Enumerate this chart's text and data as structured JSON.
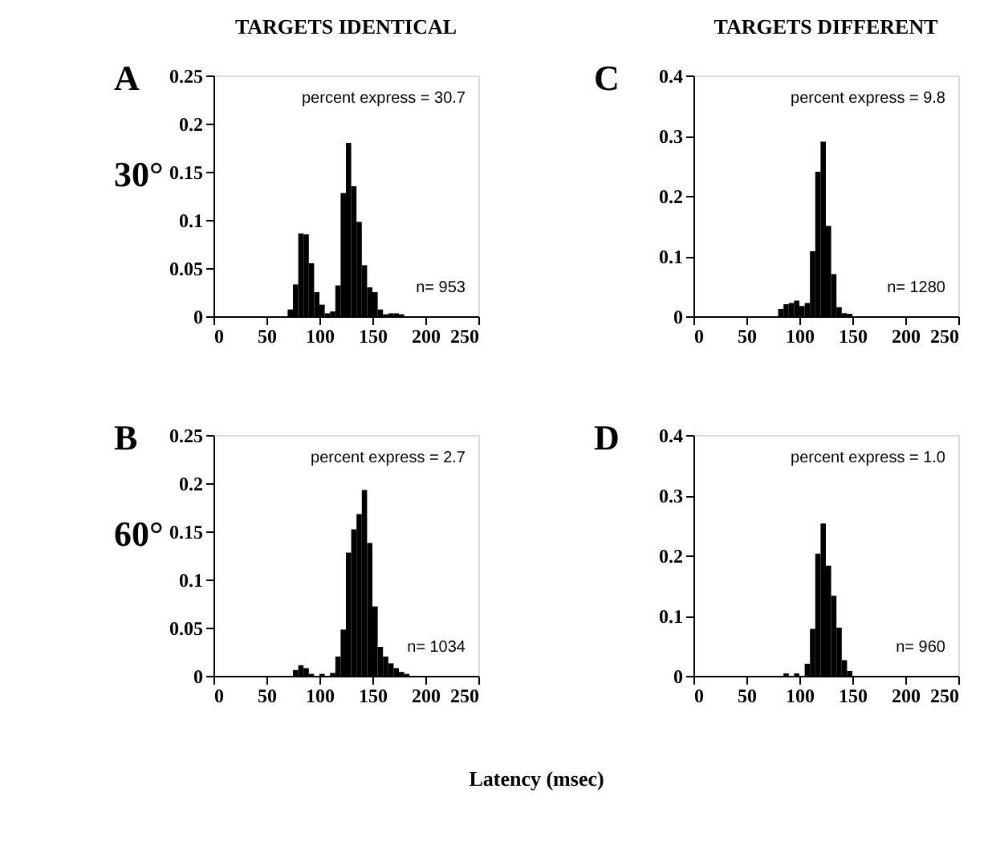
{
  "chart_data": [
    {
      "type": "histogram",
      "title": "A",
      "subtitle": "TARGETS IDENTICAL",
      "ylabel": "30°",
      "bins": [
        70,
        75,
        80,
        85,
        90,
        95,
        100,
        105,
        110,
        115,
        120,
        125,
        130,
        135,
        140,
        145,
        150,
        155,
        160,
        165,
        170,
        175,
        180
      ],
      "values": [
        0.007,
        0.033,
        0.086,
        0.085,
        0.055,
        0.025,
        0.012,
        0.003,
        0.005,
        0.032,
        0.128,
        0.18,
        0.135,
        0.098,
        0.053,
        0.03,
        0.025,
        0.007,
        0.002,
        0.003,
        0.003,
        0.002
      ],
      "color": "#000000",
      "xlim": [
        0,
        250
      ],
      "xticks": [
        0,
        50,
        100,
        150,
        200,
        250
      ],
      "ylim": [
        0,
        0.25
      ],
      "yticks": [
        0,
        0.05,
        0.1,
        0.15,
        0.2,
        0.25
      ],
      "annotations": [
        "percent express =  30.7",
        "n= 953"
      ]
    },
    {
      "type": "histogram",
      "title": "C",
      "subtitle": "TARGETS DIFFERENT",
      "bins": [
        80,
        85,
        90,
        95,
        100,
        105,
        110,
        115,
        120,
        125,
        130,
        135,
        140,
        145,
        150
      ],
      "values": [
        0.012,
        0.02,
        0.022,
        0.026,
        0.017,
        0.022,
        0.108,
        0.24,
        0.29,
        0.15,
        0.07,
        0.015,
        0.005,
        0.004
      ],
      "color": "#000000",
      "xlim": [
        0,
        250
      ],
      "xticks": [
        0,
        50,
        100,
        150,
        200,
        250
      ],
      "ylim": [
        0,
        0.4
      ],
      "yticks": [
        0,
        0.1,
        0.2,
        0.3,
        0.4
      ],
      "annotations": [
        "percent express =   9.8",
        "n= 1280"
      ]
    },
    {
      "type": "histogram",
      "title": "B",
      "ylabel": "60°",
      "bins": [
        75,
        80,
        85,
        90,
        95,
        100,
        105,
        110,
        115,
        120,
        125,
        130,
        135,
        140,
        145,
        150,
        155,
        160,
        165,
        170,
        175,
        180,
        185
      ],
      "values": [
        0.006,
        0.011,
        0.008,
        0.002,
        0.0,
        0.002,
        0.0,
        0.003,
        0.02,
        0.048,
        0.128,
        0.152,
        0.168,
        0.193,
        0.138,
        0.072,
        0.03,
        0.02,
        0.013,
        0.008,
        0.004,
        0.002
      ],
      "color": "#000000",
      "xlim": [
        0,
        250
      ],
      "xticks": [
        0,
        50,
        100,
        150,
        200,
        250
      ],
      "ylim": [
        0,
        0.25
      ],
      "yticks": [
        0,
        0.05,
        0.1,
        0.15,
        0.2,
        0.25
      ],
      "annotations": [
        "percent express =   2.7",
        "n= 1034"
      ]
    },
    {
      "type": "histogram",
      "title": "D",
      "xlabel": "Latency (msec)",
      "bins": [
        85,
        90,
        95,
        100,
        105,
        110,
        115,
        120,
        125,
        130,
        135,
        140,
        145,
        150
      ],
      "values": [
        0.004,
        0.0,
        0.004,
        0.0,
        0.02,
        0.078,
        0.203,
        0.253,
        0.183,
        0.133,
        0.08,
        0.026,
        0.008
      ],
      "color": "#000000",
      "xlim": [
        0,
        250
      ],
      "xticks": [
        0,
        50,
        100,
        150,
        200,
        250
      ],
      "ylim": [
        0,
        0.4
      ],
      "yticks": [
        0,
        0.1,
        0.2,
        0.3,
        0.4
      ],
      "annotations": [
        "percent express =   1.0",
        "n= 960"
      ]
    }
  ]
}
